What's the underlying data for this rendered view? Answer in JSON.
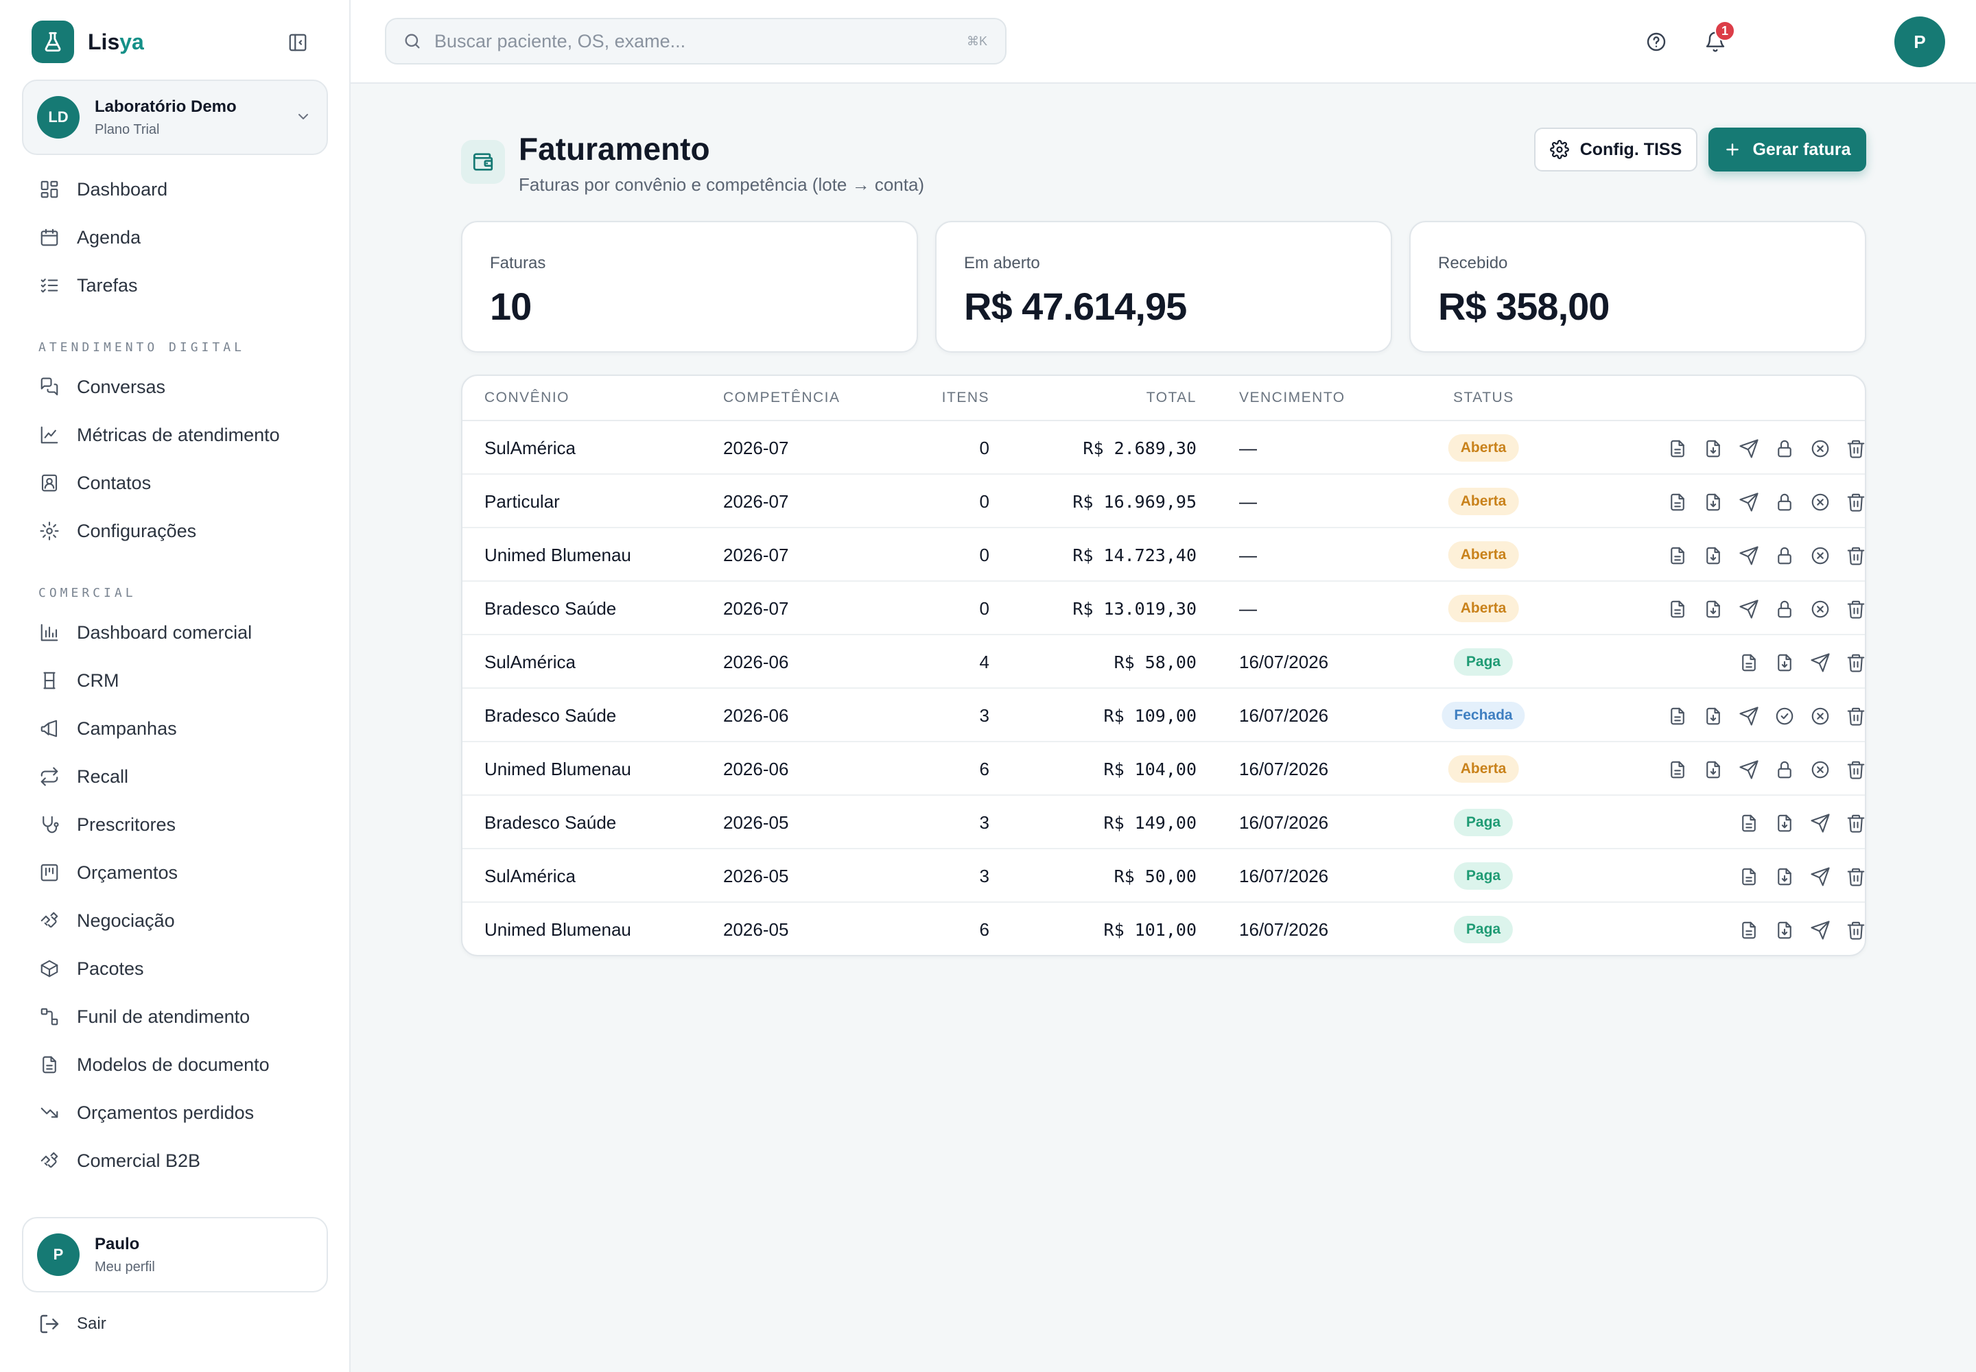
{
  "brand": {
    "name_main": "Lis",
    "name_accent": "ya"
  },
  "org": {
    "initials": "LD",
    "name": "Laboratório Demo",
    "plan": "Plano Trial"
  },
  "nav_main": [
    {
      "label": "Dashboard",
      "icon": "dashboard-icon"
    },
    {
      "label": "Agenda",
      "icon": "calendar-icon"
    },
    {
      "label": "Tarefas",
      "icon": "tasks-icon"
    }
  ],
  "section_digital": "ATENDIMENTO DIGITAL",
  "nav_digital": [
    {
      "label": "Conversas",
      "icon": "chat-icon"
    },
    {
      "label": "Métricas de atendimento",
      "icon": "line-chart-icon"
    },
    {
      "label": "Contatos",
      "icon": "contacts-icon"
    },
    {
      "label": "Configurações",
      "icon": "gear-icon"
    }
  ],
  "section_comercial": "COMERCIAL",
  "nav_comercial": [
    {
      "label": "Dashboard comercial",
      "icon": "bar-chart-icon"
    },
    {
      "label": "CRM",
      "icon": "crm-icon"
    },
    {
      "label": "Campanhas",
      "icon": "megaphone-icon"
    },
    {
      "label": "Recall",
      "icon": "repeat-icon"
    },
    {
      "label": "Prescritores",
      "icon": "stethoscope-icon"
    },
    {
      "label": "Orçamentos",
      "icon": "quote-icon"
    },
    {
      "label": "Negociação",
      "icon": "handshake-icon"
    },
    {
      "label": "Pacotes",
      "icon": "package-icon"
    },
    {
      "label": "Funil de atendimento",
      "icon": "funnel-icon"
    },
    {
      "label": "Modelos de documento",
      "icon": "document-icon"
    },
    {
      "label": "Orçamentos perdidos",
      "icon": "trending-down-icon"
    },
    {
      "label": "Comercial B2B",
      "icon": "handshake-icon"
    }
  ],
  "profile": {
    "initial": "P",
    "name": "Paulo",
    "sub": "Meu perfil"
  },
  "logout_label": "Sair",
  "search": {
    "placeholder": "Buscar paciente, OS, exame...",
    "shortcut": "⌘K"
  },
  "notifications": {
    "count": "1"
  },
  "user": {
    "initial": "P"
  },
  "page": {
    "title": "Faturamento",
    "subtitle": "Faturas por convênio e competência (lote → conta)",
    "btn_config": "Config. TISS",
    "btn_generate": "Gerar fatura"
  },
  "stats": [
    {
      "label": "Faturas",
      "value": "10"
    },
    {
      "label": "Em aberto",
      "value": "R$ 47.614,95"
    },
    {
      "label": "Recebido",
      "value": "R$ 358,00"
    }
  ],
  "table": {
    "columns": [
      "CONVÊNIO",
      "COMPETÊNCIA",
      "ITENS",
      "TOTAL",
      "VENCIMENTO",
      "STATUS"
    ],
    "rows": [
      {
        "convenio": "SulAmérica",
        "competencia": "2026-07",
        "itens": "0",
        "total": "R$ 2.689,30",
        "vencimento": "—",
        "status": "Aberta",
        "kind": "aberta"
      },
      {
        "convenio": "Particular",
        "competencia": "2026-07",
        "itens": "0",
        "total": "R$ 16.969,95",
        "vencimento": "—",
        "status": "Aberta",
        "kind": "aberta"
      },
      {
        "convenio": "Unimed Blumenau",
        "competencia": "2026-07",
        "itens": "0",
        "total": "R$ 14.723,40",
        "vencimento": "—",
        "status": "Aberta",
        "kind": "aberta"
      },
      {
        "convenio": "Bradesco Saúde",
        "competencia": "2026-07",
        "itens": "0",
        "total": "R$ 13.019,30",
        "vencimento": "—",
        "status": "Aberta",
        "kind": "aberta"
      },
      {
        "convenio": "SulAmérica",
        "competencia": "2026-06",
        "itens": "4",
        "total": "R$ 58,00",
        "vencimento": "16/07/2026",
        "status": "Paga",
        "kind": "paga"
      },
      {
        "convenio": "Bradesco Saúde",
        "competencia": "2026-06",
        "itens": "3",
        "total": "R$ 109,00",
        "vencimento": "16/07/2026",
        "status": "Fechada",
        "kind": "fechada"
      },
      {
        "convenio": "Unimed Blumenau",
        "competencia": "2026-06",
        "itens": "6",
        "total": "R$ 104,00",
        "vencimento": "16/07/2026",
        "status": "Aberta",
        "kind": "aberta"
      },
      {
        "convenio": "Bradesco Saúde",
        "competencia": "2026-05",
        "itens": "3",
        "total": "R$ 149,00",
        "vencimento": "16/07/2026",
        "status": "Paga",
        "kind": "paga"
      },
      {
        "convenio": "SulAmérica",
        "competencia": "2026-05",
        "itens": "3",
        "total": "R$ 50,00",
        "vencimento": "16/07/2026",
        "status": "Paga",
        "kind": "paga"
      },
      {
        "convenio": "Unimed Blumenau",
        "competencia": "2026-05",
        "itens": "6",
        "total": "R$ 101,00",
        "vencimento": "16/07/2026",
        "status": "Paga",
        "kind": "paga"
      }
    ]
  },
  "colors": {
    "accent": "#167a74",
    "aberta": "#c9821b",
    "paga": "#1f9b74",
    "fechada": "#3f7fc1",
    "notification": "#dc3d48"
  }
}
